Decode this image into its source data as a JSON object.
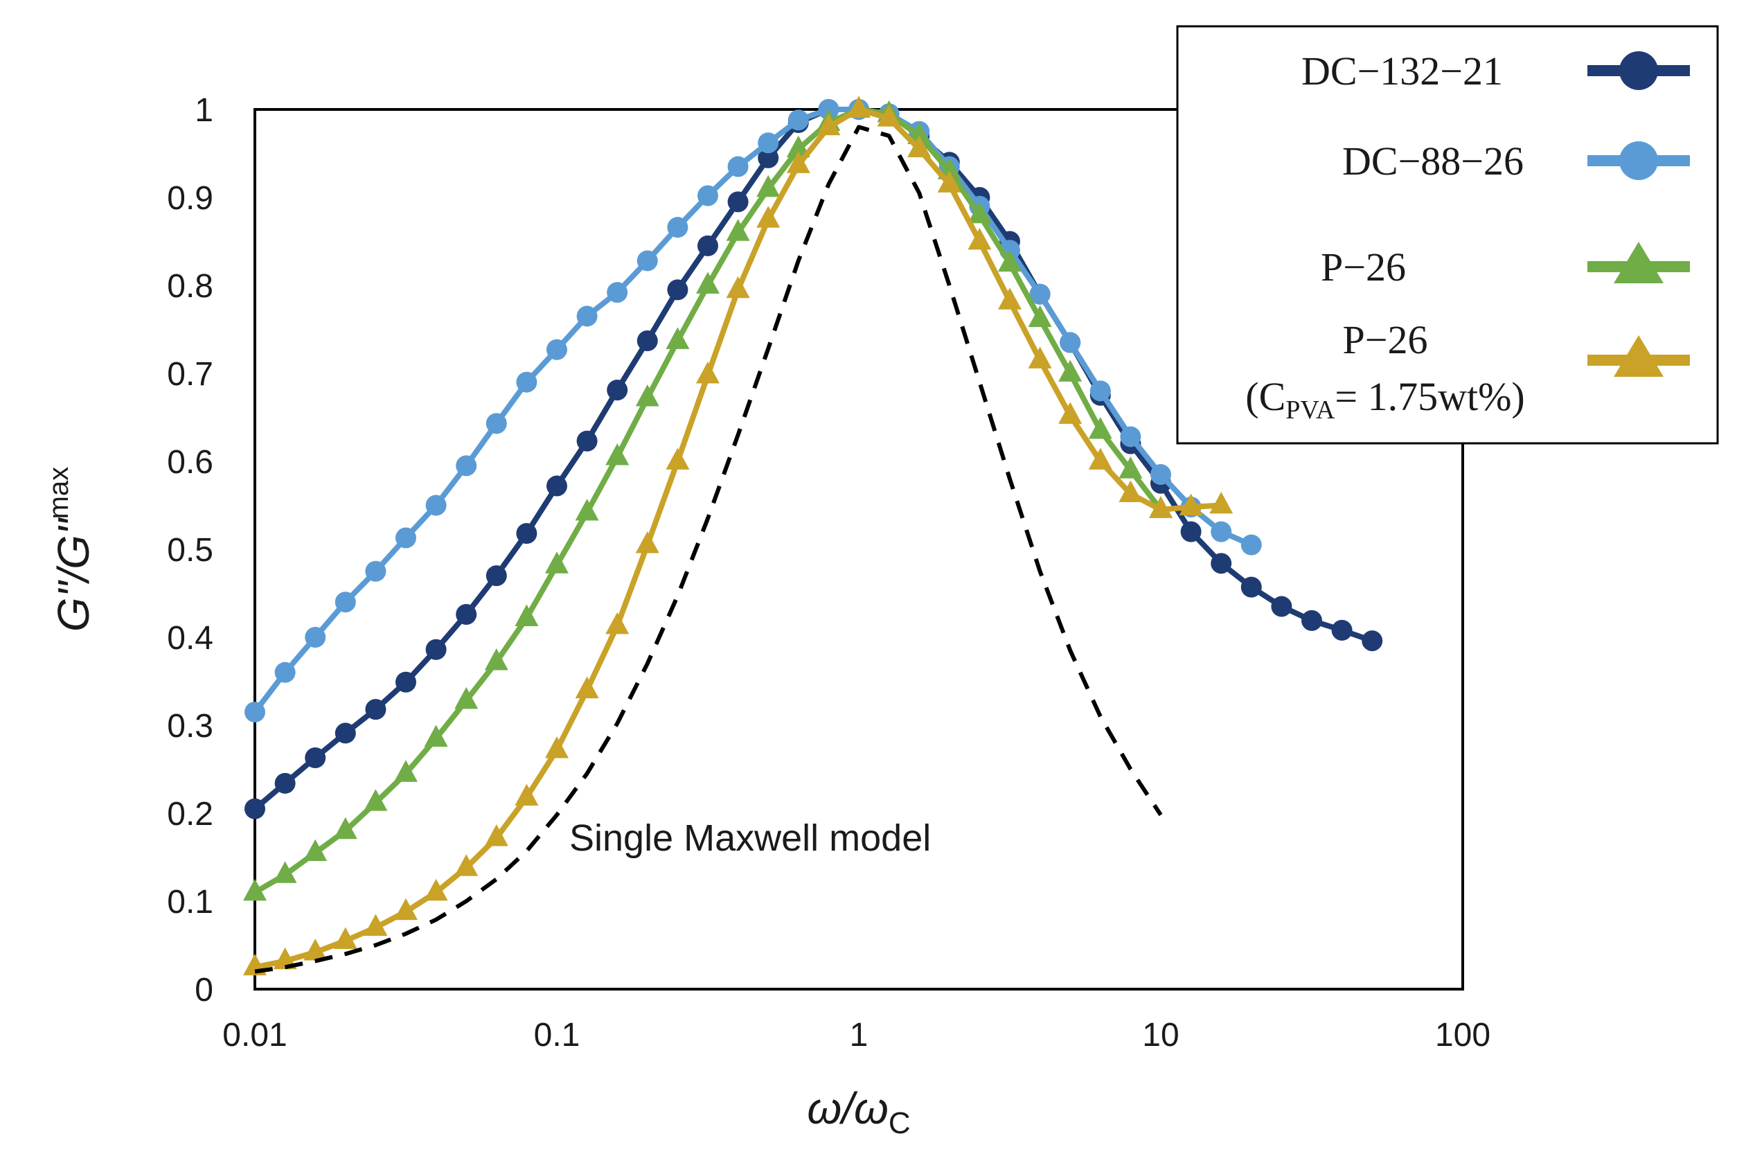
{
  "chart_data": {
    "type": "line",
    "x_scale": "log",
    "xlim": [
      0.01,
      100
    ],
    "ylim": [
      0,
      1
    ],
    "x_ticks": [
      "0.01",
      "0.1",
      "1",
      "10",
      "100"
    ],
    "y_ticks": [
      "0",
      "0.1",
      "0.2",
      "0.3",
      "0.4",
      "0.5",
      "0.6",
      "0.7",
      "0.8",
      "0.9",
      "1"
    ],
    "xlabel": {
      "main": "ω/ω",
      "sub": "C"
    },
    "ylabel": {
      "main": "G\"/G\"",
      "sub": "max"
    },
    "legend_position": "top-right",
    "series": [
      {
        "name": "DC−132−21",
        "color": "#1f3b73",
        "marker": "circle",
        "x": [
          0.01,
          0.01259,
          0.01585,
          0.01995,
          0.02512,
          0.03162,
          0.03981,
          0.05012,
          0.0631,
          0.07943,
          0.1,
          0.1259,
          0.1585,
          0.1995,
          0.2512,
          0.3162,
          0.3981,
          0.5012,
          0.631,
          0.7943,
          1,
          1.259,
          1.585,
          1.995,
          2.512,
          3.162,
          3.981,
          5.012,
          6.31,
          7.943,
          10,
          12.59,
          15.85,
          19.95,
          25.12,
          31.62,
          39.81,
          50.12
        ],
        "y": [
          0.205,
          0.234,
          0.263,
          0.291,
          0.318,
          0.349,
          0.386,
          0.426,
          0.47,
          0.518,
          0.572,
          0.623,
          0.681,
          0.737,
          0.795,
          0.845,
          0.895,
          0.945,
          0.985,
          1.0,
          1.0,
          0.995,
          0.97,
          0.94,
          0.9,
          0.85,
          0.79,
          0.735,
          0.675,
          0.62,
          0.575,
          0.52,
          0.484,
          0.457,
          0.435,
          0.419,
          0.408,
          0.396
        ]
      },
      {
        "name": "DC−88−26",
        "color": "#5b9bd5",
        "marker": "circle",
        "x": [
          0.01,
          0.01259,
          0.01585,
          0.01995,
          0.02512,
          0.03162,
          0.03981,
          0.05012,
          0.0631,
          0.07943,
          0.1,
          0.1259,
          0.1585,
          0.1995,
          0.2512,
          0.3162,
          0.3981,
          0.5012,
          0.631,
          0.7943,
          1,
          1.259,
          1.585,
          1.995,
          2.512,
          3.162,
          3.981,
          5.012,
          6.31,
          7.943,
          10,
          12.59,
          15.85,
          19.95
        ],
        "y": [
          0.315,
          0.36,
          0.4,
          0.44,
          0.475,
          0.513,
          0.55,
          0.595,
          0.643,
          0.69,
          0.727,
          0.765,
          0.792,
          0.828,
          0.866,
          0.902,
          0.935,
          0.962,
          0.988,
          1.0,
          1.0,
          0.995,
          0.975,
          0.935,
          0.89,
          0.84,
          0.79,
          0.735,
          0.68,
          0.628,
          0.585,
          0.548,
          0.52,
          0.505
        ]
      },
      {
        "name": "P−26",
        "color": "#70ad47",
        "marker": "triangle",
        "x": [
          0.01,
          0.01259,
          0.01585,
          0.01995,
          0.02512,
          0.03162,
          0.03981,
          0.05012,
          0.0631,
          0.07943,
          0.1,
          0.1259,
          0.1585,
          0.1995,
          0.2512,
          0.3162,
          0.3981,
          0.5012,
          0.631,
          0.7943,
          1,
          1.259,
          1.585,
          1.995,
          2.512,
          3.162,
          3.981,
          5.012,
          6.31,
          7.943,
          10
        ],
        "y": [
          0.11,
          0.13,
          0.155,
          0.18,
          0.212,
          0.245,
          0.285,
          0.328,
          0.372,
          0.422,
          0.482,
          0.542,
          0.605,
          0.672,
          0.737,
          0.8,
          0.86,
          0.91,
          0.955,
          0.985,
          1.0,
          0.995,
          0.97,
          0.93,
          0.88,
          0.825,
          0.762,
          0.7,
          0.635,
          0.59,
          0.545
        ]
      },
      {
        "name": "P−26",
        "name_sub_prefix": "(C",
        "name_sub": "PVA",
        "name_sub_suffix": "= 1.75wt%)",
        "color": "#c9a227",
        "marker": "triangle",
        "x": [
          0.01,
          0.01259,
          0.01585,
          0.01995,
          0.02512,
          0.03162,
          0.03981,
          0.05012,
          0.0631,
          0.07943,
          0.1,
          0.1259,
          0.1585,
          0.1995,
          0.2512,
          0.3162,
          0.3981,
          0.5012,
          0.631,
          0.7943,
          1,
          1.259,
          1.585,
          1.995,
          2.512,
          3.162,
          3.981,
          5.012,
          6.31,
          7.943,
          10,
          12.59,
          15.85
        ],
        "y": [
          0.025,
          0.032,
          0.042,
          0.055,
          0.07,
          0.088,
          0.11,
          0.138,
          0.172,
          0.218,
          0.272,
          0.34,
          0.413,
          0.505,
          0.6,
          0.698,
          0.795,
          0.875,
          0.937,
          0.98,
          1.0,
          0.99,
          0.955,
          0.915,
          0.85,
          0.782,
          0.715,
          0.652,
          0.6,
          0.563,
          0.545,
          0.548,
          0.55
        ]
      },
      {
        "name": "Single Maxwell model",
        "color": "#000000",
        "marker": "none",
        "style": "dashed",
        "x": [
          0.01,
          0.01259,
          0.01585,
          0.01995,
          0.02512,
          0.03162,
          0.03981,
          0.05012,
          0.0631,
          0.07943,
          0.1,
          0.1259,
          0.1585,
          0.1995,
          0.2512,
          0.3162,
          0.3981,
          0.5012,
          0.631,
          0.7943,
          1,
          1.259,
          1.585,
          1.995,
          2.512,
          3.162,
          3.981,
          5.012,
          6.31,
          7.943,
          10
        ],
        "y": [
          0.02,
          0.025,
          0.032,
          0.04,
          0.05,
          0.063,
          0.079,
          0.1,
          0.125,
          0.157,
          0.198,
          0.245,
          0.302,
          0.37,
          0.447,
          0.535,
          0.63,
          0.728,
          0.828,
          0.915,
          0.98,
          0.97,
          0.905,
          0.8,
          0.69,
          0.58,
          0.475,
          0.385,
          0.31,
          0.25,
          0.198
        ]
      }
    ],
    "annotations": [
      {
        "text": "Single Maxwell model",
        "x": 0.1,
        "y": 0.17
      }
    ]
  }
}
